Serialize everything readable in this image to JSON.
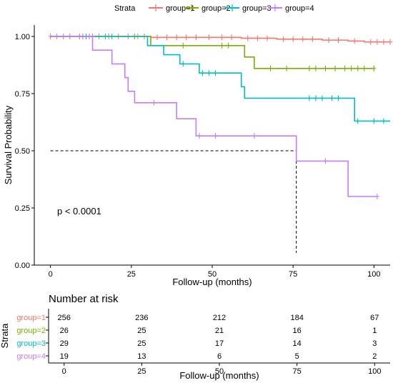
{
  "chart_data": [
    {
      "type": "line",
      "subtype": "kaplan-meier",
      "title": "",
      "xlabel": "Follow-up (months)",
      "ylabel": "Survival Probability",
      "xlim": [
        -5,
        105
      ],
      "ylim": [
        0,
        1.05
      ],
      "x_ticks": [
        0,
        25,
        50,
        75,
        100
      ],
      "x_tick_labels": [
        "0",
        "25",
        "50",
        "75",
        "100"
      ],
      "y_ticks": [
        0,
        0.25,
        0.5,
        0.75,
        1.0
      ],
      "y_tick_labels": [
        "0.00",
        "0.25",
        "0.50",
        "0.75",
        "1.00"
      ],
      "grid": false,
      "legend": {
        "title": "Strata",
        "position": "top"
      },
      "annotation": "p < 0.0001",
      "median_line": {
        "x": 76,
        "y": 0.5
      },
      "series": [
        {
          "name": "group=1",
          "color": "#F8766D",
          "steps": [
            [
              0,
              1.0
            ],
            [
              31,
              0.996
            ],
            [
              59,
              0.992
            ],
            [
              70,
              0.988
            ],
            [
              84,
              0.984
            ],
            [
              92,
              0.98
            ],
            [
              97,
              0.976
            ],
            [
              105,
              0.976
            ]
          ],
          "censors": [
            [
              0,
              1.0
            ],
            [
              2,
              1.0
            ],
            [
              4,
              1.0
            ],
            [
              6,
              1.0
            ],
            [
              9,
              1.0
            ],
            [
              12,
              1.0
            ],
            [
              15,
              1.0
            ],
            [
              18,
              1.0
            ],
            [
              21,
              1.0
            ],
            [
              24,
              1.0
            ],
            [
              27,
              1.0
            ],
            [
              29,
              1.0
            ],
            [
              33,
              0.996
            ],
            [
              36,
              0.996
            ],
            [
              39,
              0.996
            ],
            [
              42,
              0.996
            ],
            [
              45,
              0.996
            ],
            [
              49,
              0.996
            ],
            [
              53,
              0.996
            ],
            [
              56,
              0.996
            ],
            [
              61,
              0.992
            ],
            [
              64,
              0.992
            ],
            [
              67,
              0.992
            ],
            [
              72,
              0.988
            ],
            [
              75,
              0.988
            ],
            [
              78,
              0.988
            ],
            [
              81,
              0.988
            ],
            [
              86,
              0.984
            ],
            [
              89,
              0.984
            ],
            [
              94,
              0.98
            ],
            [
              99,
              0.976
            ],
            [
              101,
              0.976
            ],
            [
              103,
              0.976
            ],
            [
              105,
              0.976
            ]
          ]
        },
        {
          "name": "group=2",
          "color": "#7CAE00",
          "steps": [
            [
              0,
              1.0
            ],
            [
              31,
              0.96
            ],
            [
              60,
              0.91
            ],
            [
              63,
              0.86
            ],
            [
              100,
              0.86
            ]
          ],
          "censors": [
            [
              10,
              1.0
            ],
            [
              26,
              1.0
            ],
            [
              41,
              0.96
            ],
            [
              53,
              0.96
            ],
            [
              55,
              0.96
            ],
            [
              68,
              0.86
            ],
            [
              73,
              0.86
            ],
            [
              80,
              0.86
            ],
            [
              82,
              0.86
            ],
            [
              85,
              0.86
            ],
            [
              88,
              0.86
            ],
            [
              91,
              0.86
            ],
            [
              93,
              0.86
            ],
            [
              95,
              0.86
            ],
            [
              97,
              0.86
            ],
            [
              100,
              0.86
            ]
          ]
        },
        {
          "name": "group=3",
          "color": "#00BFC4",
          "steps": [
            [
              0,
              1.0
            ],
            [
              30,
              0.96
            ],
            [
              35,
              0.92
            ],
            [
              40,
              0.88
            ],
            [
              46,
              0.84
            ],
            [
              59,
              0.78
            ],
            [
              60,
              0.73
            ],
            [
              94,
              0.63
            ],
            [
              105,
              0.63
            ]
          ],
          "censors": [
            [
              11,
              1.0
            ],
            [
              13,
              1.0
            ],
            [
              17,
              1.0
            ],
            [
              19,
              1.0
            ],
            [
              41,
              0.88
            ],
            [
              47,
              0.84
            ],
            [
              49,
              0.84
            ],
            [
              51,
              0.84
            ],
            [
              80,
              0.73
            ],
            [
              82,
              0.73
            ],
            [
              84,
              0.73
            ],
            [
              87,
              0.73
            ],
            [
              89,
              0.73
            ],
            [
              95,
              0.63
            ],
            [
              100,
              0.63
            ],
            [
              103,
              0.63
            ]
          ]
        },
        {
          "name": "group=4",
          "color": "#C77CFF",
          "steps": [
            [
              0,
              1.0
            ],
            [
              13,
              0.94
            ],
            [
              19,
              0.88
            ],
            [
              23,
              0.82
            ],
            [
              24,
              0.76
            ],
            [
              26,
              0.71
            ],
            [
              39,
              0.64
            ],
            [
              45,
              0.565
            ],
            [
              76,
              0.455
            ],
            [
              92,
              0.3
            ],
            [
              101,
              0.3
            ]
          ],
          "censors": [
            [
              10,
              1.0
            ],
            [
              13,
              1.0
            ],
            [
              32,
              0.71
            ],
            [
              46,
              0.565
            ],
            [
              51,
              0.565
            ],
            [
              63,
              0.565
            ],
            [
              85,
              0.455
            ],
            [
              101,
              0.3
            ]
          ]
        }
      ]
    },
    {
      "type": "table",
      "title": "Number at risk",
      "xlabel": "Follow-up (months)",
      "ylabel": "Strata",
      "x_ticks": [
        0,
        25,
        50,
        75,
        100
      ],
      "rows": [
        {
          "label": "group=1",
          "color": "#F8766D",
          "values": [
            "256",
            "236",
            "212",
            "184",
            "67"
          ]
        },
        {
          "label": "group=2",
          "color": "#7CAE00",
          "values": [
            "26",
            "25",
            "21",
            "16",
            "1"
          ]
        },
        {
          "label": "group=3",
          "color": "#00BFC4",
          "values": [
            "29",
            "25",
            "17",
            "14",
            "3"
          ]
        },
        {
          "label": "group=4",
          "color": "#C77CFF",
          "values": [
            "19",
            "13",
            "6",
            "5",
            "2"
          ]
        }
      ]
    }
  ]
}
